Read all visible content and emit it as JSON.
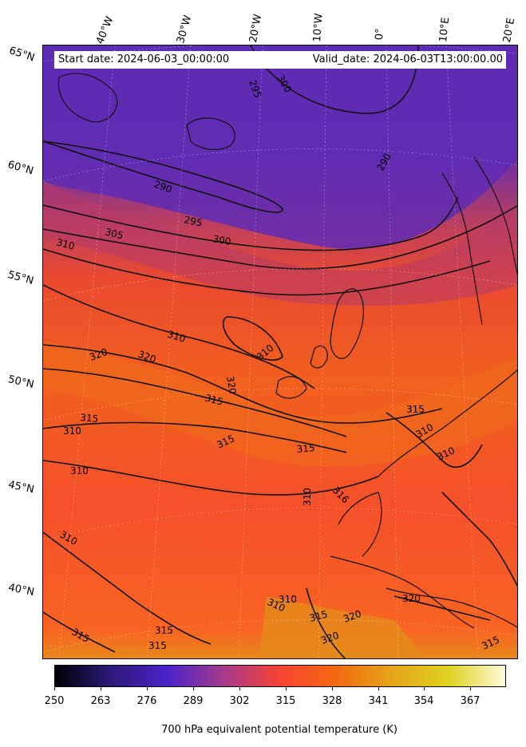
{
  "info": {
    "start_date": "Start date: 2024-06-03_00:00:00",
    "valid_date": "Valid_date: 2024-06-03T13:00:00.00"
  },
  "lat_labels": [
    "65°N",
    "60°N",
    "55°N",
    "50°N",
    "45°N",
    "40°N"
  ],
  "lon_labels": [
    "40°W",
    "30°W",
    "20°W",
    "10°W",
    "0°",
    "10°E",
    "20°E"
  ],
  "contour_labels": [
    "295",
    "300",
    "290",
    "290",
    "295",
    "300",
    "305",
    "310",
    "310",
    "320",
    "320",
    "310",
    "310",
    "320",
    "315",
    "315",
    "310",
    "315",
    "310",
    "315",
    "310",
    "310",
    "316",
    "310",
    "310",
    "315",
    "320",
    "320",
    "315",
    "315",
    "315",
    "315",
    "320",
    "315",
    "310"
  ],
  "colorbar": {
    "title": "700 hPa equivalent potential temperature (K)",
    "ticks": [
      "250",
      "263",
      "276",
      "289",
      "302",
      "315",
      "328",
      "341",
      "354",
      "367"
    ],
    "colors": [
      "#000004",
      "#2d1a7a",
      "#4b22c9",
      "#a53a8a",
      "#fa4333",
      "#f26a0f",
      "#e6a518",
      "#dfd21f",
      "#fcfbdb"
    ]
  }
}
